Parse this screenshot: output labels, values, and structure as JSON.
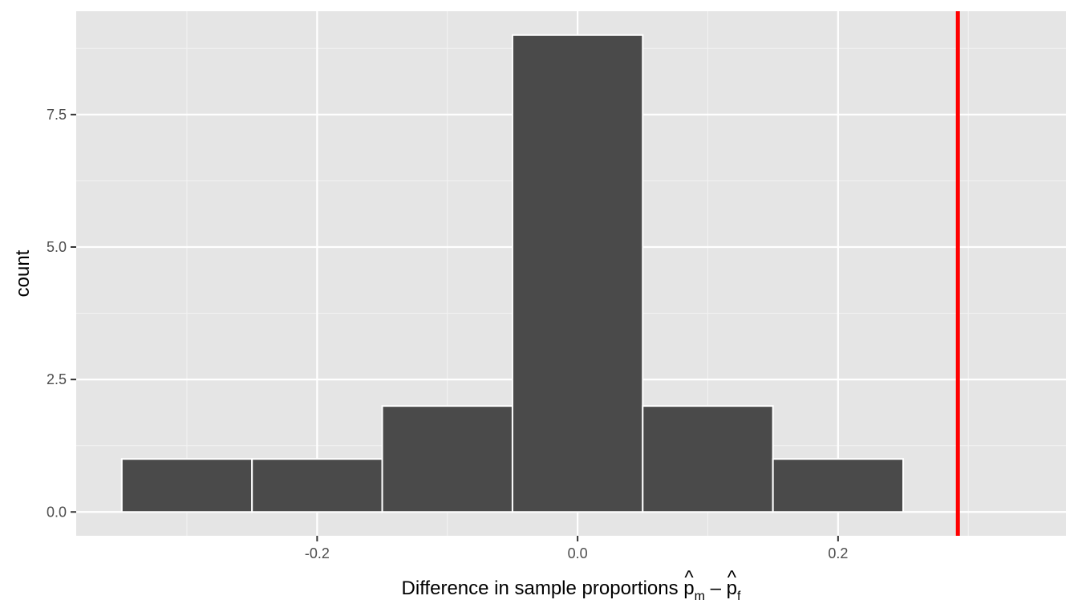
{
  "chart_data": {
    "type": "bar",
    "subtype": "histogram",
    "bins": [
      {
        "x0": -0.35,
        "x1": -0.25,
        "count": 1
      },
      {
        "x0": -0.25,
        "x1": -0.15,
        "count": 1
      },
      {
        "x0": -0.15,
        "x1": -0.05,
        "count": 2
      },
      {
        "x0": -0.05,
        "x1": 0.05,
        "count": 9
      },
      {
        "x0": 0.05,
        "x1": 0.15,
        "count": 2
      },
      {
        "x0": 0.15,
        "x1": 0.25,
        "count": 1
      }
    ],
    "reference_line": {
      "x": 0.292,
      "color": "#ff0000"
    },
    "xlim": [
      -0.385,
      0.375
    ],
    "ylim": [
      -0.45,
      9.45
    ],
    "x_ticks": [
      {
        "value": -0.2,
        "label": "-0.2"
      },
      {
        "value": 0.0,
        "label": "0.0"
      },
      {
        "value": 0.2,
        "label": "0.2"
      }
    ],
    "x_minor": [
      -0.3,
      -0.1,
      0.1,
      0.3
    ],
    "y_ticks": [
      {
        "value": 0.0,
        "label": "0.0"
      },
      {
        "value": 2.5,
        "label": "2.5"
      },
      {
        "value": 5.0,
        "label": "5.0"
      },
      {
        "value": 7.5,
        "label": "7.5"
      }
    ],
    "y_minor": [
      1.25,
      3.75,
      6.25,
      8.75
    ],
    "xlabel": {
      "prefix": "Difference in sample proportions ",
      "term1": "p",
      "term1_hat": "^",
      "term1_sub": "m",
      "operator": " – ",
      "term2": "p",
      "term2_hat": "^",
      "term2_sub": "f"
    },
    "ylabel": "count",
    "grid": true,
    "colors": {
      "panel": "#e5e5e5",
      "grid_major": "#ffffff",
      "grid_minor": "#f2f2f2",
      "bar_fill": "#4a4a4a",
      "bar_stroke": "#ffffff",
      "tick": "#333333"
    }
  }
}
